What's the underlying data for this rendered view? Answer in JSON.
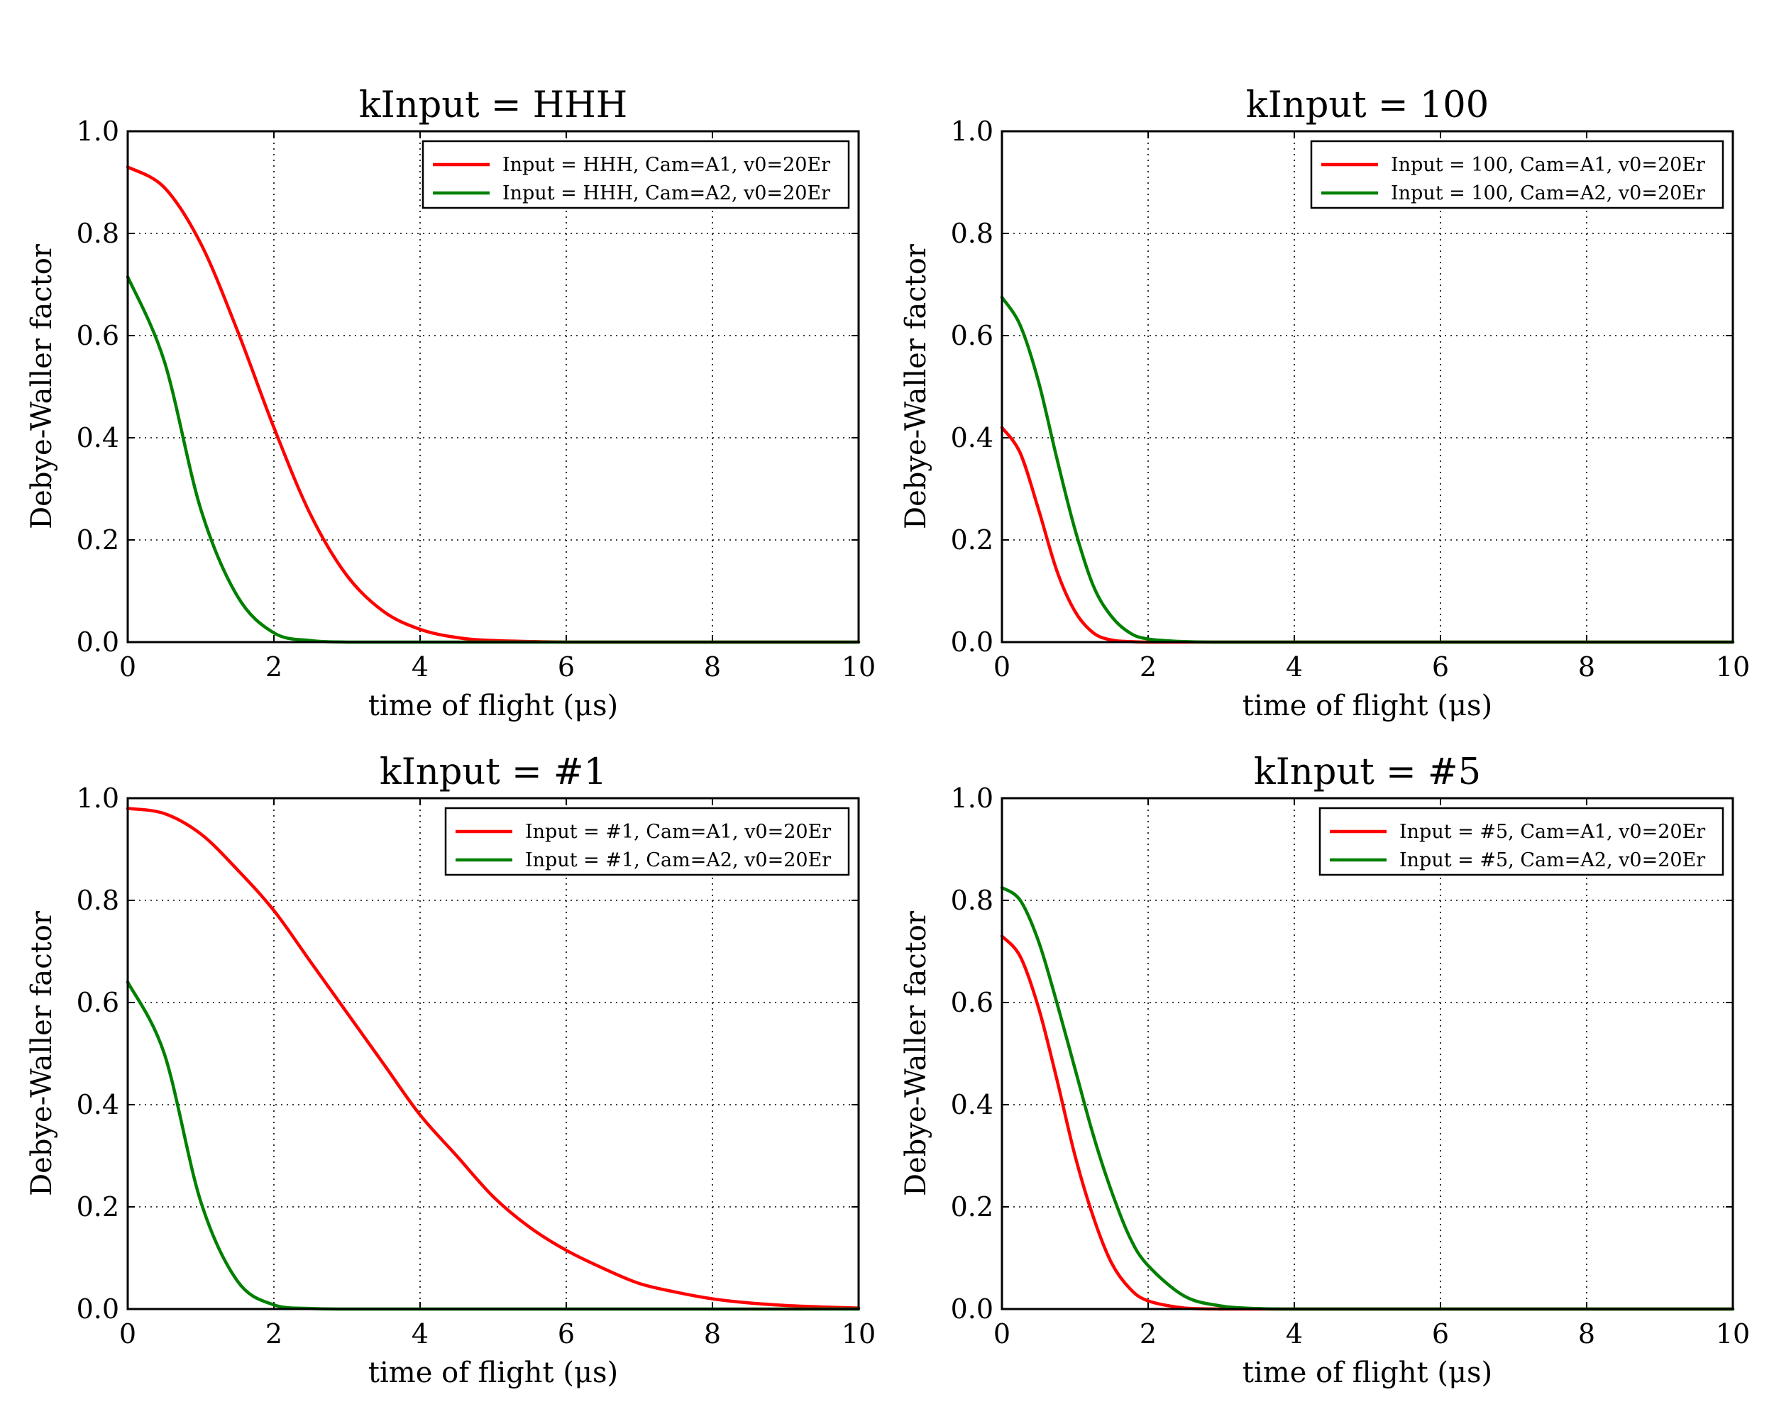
{
  "chart_data": [
    {
      "type": "line",
      "title": "kInput = HHH",
      "xlabel": "time of flight (μs)",
      "ylabel": "Debye-Waller factor",
      "xlim": [
        0,
        10
      ],
      "ylim": [
        0.0,
        1.0
      ],
      "xticks": [
        "0",
        "2",
        "4",
        "6",
        "8",
        "10"
      ],
      "yticks": [
        "0.0",
        "0.2",
        "0.4",
        "0.6",
        "0.8",
        "1.0"
      ],
      "grid": true,
      "legend": "top-right",
      "x": [
        0,
        0.5,
        1,
        1.5,
        2,
        2.5,
        3,
        3.5,
        4,
        4.5,
        5,
        6,
        7,
        8,
        9,
        10
      ],
      "series": [
        {
          "name": "Input = HHH, Cam=A1, v0=20Er",
          "color": "#ff0000",
          "values": [
            0.93,
            0.89,
            0.78,
            0.61,
            0.42,
            0.25,
            0.13,
            0.06,
            0.025,
            0.009,
            0.003,
            0.0,
            0.0,
            0.0,
            0.0,
            0.0
          ]
        },
        {
          "name": "Input = HHH, Cam=A2, v0=20Er",
          "color": "#008000",
          "values": [
            0.715,
            0.55,
            0.26,
            0.09,
            0.018,
            0.003,
            0.0,
            0.0,
            0.0,
            0.0,
            0.0,
            0.0,
            0.0,
            0.0,
            0.0,
            0.0
          ]
        }
      ]
    },
    {
      "type": "line",
      "title": "kInput = 100",
      "xlabel": "time of flight (μs)",
      "ylabel": "Debye-Waller factor",
      "xlim": [
        0,
        10
      ],
      "ylim": [
        0.0,
        1.0
      ],
      "xticks": [
        "0",
        "2",
        "4",
        "6",
        "8",
        "10"
      ],
      "yticks": [
        "0.0",
        "0.2",
        "0.4",
        "0.6",
        "0.8",
        "1.0"
      ],
      "grid": true,
      "legend": "top-right",
      "x": [
        0,
        0.25,
        0.5,
        0.75,
        1,
        1.25,
        1.5,
        1.75,
        2,
        2.5,
        3,
        4,
        6,
        8,
        10
      ],
      "series": [
        {
          "name": "Input = 100, Cam=A1, v0=20Er",
          "color": "#ff0000",
          "values": [
            0.42,
            0.37,
            0.26,
            0.14,
            0.06,
            0.018,
            0.004,
            0.001,
            0.0,
            0.0,
            0.0,
            0.0,
            0.0,
            0.0,
            0.0
          ]
        },
        {
          "name": "Input = 100, Cam=A2, v0=20Er",
          "color": "#008000",
          "values": [
            0.675,
            0.62,
            0.51,
            0.36,
            0.22,
            0.11,
            0.05,
            0.018,
            0.006,
            0.001,
            0.0,
            0.0,
            0.0,
            0.0,
            0.0
          ]
        }
      ]
    },
    {
      "type": "line",
      "title": "kInput = #1",
      "xlabel": "time of flight (μs)",
      "ylabel": "Debye-Waller factor",
      "xlim": [
        0,
        10
      ],
      "ylim": [
        0.0,
        1.0
      ],
      "xticks": [
        "0",
        "2",
        "4",
        "6",
        "8",
        "10"
      ],
      "yticks": [
        "0.0",
        "0.2",
        "0.4",
        "0.6",
        "0.8",
        "1.0"
      ],
      "grid": true,
      "legend": "top-right",
      "x": [
        0,
        0.5,
        1,
        1.5,
        2,
        2.5,
        3,
        3.5,
        4,
        4.5,
        5,
        5.5,
        6,
        6.5,
        7,
        7.5,
        8,
        8.5,
        9,
        9.5,
        10
      ],
      "series": [
        {
          "name": "Input = #1, Cam=A1, v0=20Er",
          "color": "#ff0000",
          "values": [
            0.98,
            0.97,
            0.93,
            0.86,
            0.78,
            0.68,
            0.58,
            0.48,
            0.38,
            0.3,
            0.22,
            0.16,
            0.115,
            0.08,
            0.05,
            0.033,
            0.02,
            0.012,
            0.007,
            0.004,
            0.002
          ]
        },
        {
          "name": "Input = #1, Cam=A2, v0=20Er",
          "color": "#008000",
          "values": [
            0.64,
            0.5,
            0.21,
            0.055,
            0.008,
            0.001,
            0.0,
            0.0,
            0.0,
            0.0,
            0.0,
            0.0,
            0.0,
            0.0,
            0.0,
            0.0,
            0.0,
            0.0,
            0.0,
            0.0,
            0.0
          ]
        }
      ]
    },
    {
      "type": "line",
      "title": "kInput = #5",
      "xlabel": "time of flight (μs)",
      "ylabel": "Debye-Waller factor",
      "xlim": [
        0,
        10
      ],
      "ylim": [
        0.0,
        1.0
      ],
      "xticks": [
        "0",
        "2",
        "4",
        "6",
        "8",
        "10"
      ],
      "yticks": [
        "0.0",
        "0.2",
        "0.4",
        "0.6",
        "0.8",
        "1.0"
      ],
      "grid": true,
      "legend": "top-right",
      "x": [
        0,
        0.25,
        0.5,
        0.75,
        1,
        1.25,
        1.5,
        1.75,
        2,
        2.5,
        3,
        3.5,
        4,
        5,
        6,
        8,
        10
      ],
      "series": [
        {
          "name": "Input = #5, Cam=A1, v0=20Er",
          "color": "#ff0000",
          "values": [
            0.73,
            0.69,
            0.59,
            0.45,
            0.3,
            0.18,
            0.09,
            0.04,
            0.016,
            0.002,
            0.0,
            0.0,
            0.0,
            0.0,
            0.0,
            0.0,
            0.0
          ]
        },
        {
          "name": "Input = #5, Cam=A2, v0=20Er",
          "color": "#008000",
          "values": [
            0.825,
            0.8,
            0.72,
            0.6,
            0.47,
            0.34,
            0.23,
            0.14,
            0.085,
            0.025,
            0.006,
            0.001,
            0.0,
            0.0,
            0.0,
            0.0,
            0.0
          ]
        }
      ]
    }
  ]
}
